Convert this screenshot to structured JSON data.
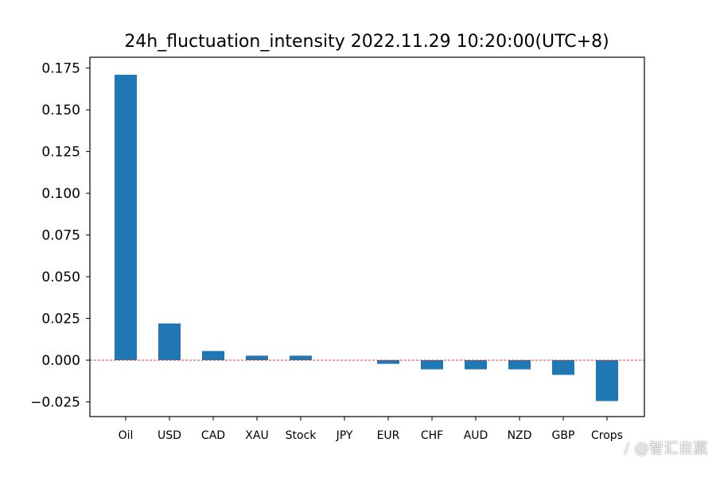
{
  "chart_data": {
    "type": "bar",
    "title": "24h_fluctuation_intensity 2022.11.29 10:20:00(UTC+8)",
    "categories": [
      "Oil",
      "USD",
      "CAD",
      "XAU",
      "Stock",
      "JPY",
      "EUR",
      "CHF",
      "AUD",
      "NZD",
      "GBP",
      "Crops"
    ],
    "values": [
      0.171,
      0.022,
      0.0055,
      0.0027,
      0.0027,
      0.0,
      -0.0022,
      -0.0055,
      -0.0055,
      -0.0055,
      -0.0088,
      -0.0245
    ],
    "ylim": [
      -0.0338,
      0.1815
    ],
    "yticks": [
      -0.025,
      0.0,
      0.025,
      0.05,
      0.075,
      0.1,
      0.125,
      0.15,
      0.175
    ],
    "ytick_labels": [
      "−0.025",
      "0.000",
      "0.025",
      "0.050",
      "0.075",
      "0.100",
      "0.125",
      "0.150",
      "0.175"
    ],
    "bar_color": "#1f77b4",
    "zero_line_color": "#d62728",
    "xlabel": "",
    "ylabel": ""
  },
  "watermark": "∕ @智汇自赢"
}
